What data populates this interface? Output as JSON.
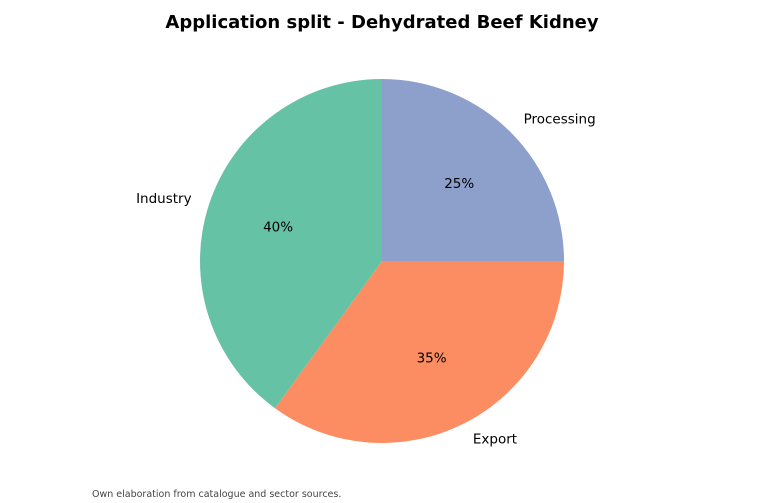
{
  "chart_data": {
    "type": "pie",
    "title": "Application split - Dehydrated Beef Kidney",
    "slices": [
      {
        "label": "Processing",
        "value": 25,
        "pct_label": "25%",
        "color": "#8da0cb"
      },
      {
        "label": "Export",
        "value": 35,
        "pct_label": "35%",
        "color": "#fc8d62"
      },
      {
        "label": "Industry",
        "value": 40,
        "pct_label": "40%",
        "color": "#66c2a5"
      }
    ],
    "start": "12 o'clock",
    "direction": "clockwise",
    "legend": "none"
  },
  "footer": {
    "source": "Own elaboration from catalogue and sector sources."
  }
}
